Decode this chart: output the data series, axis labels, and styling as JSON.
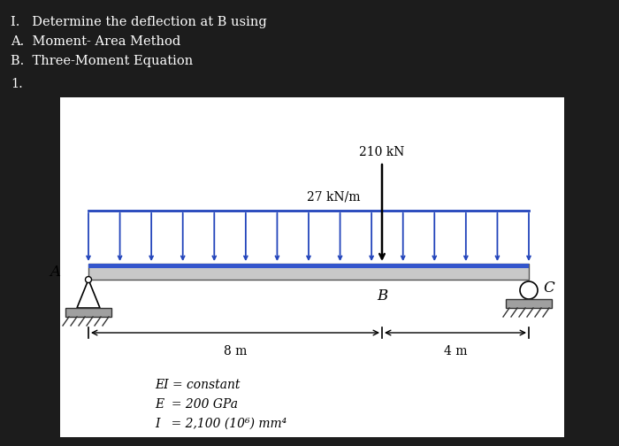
{
  "bg_color": "#1c1c1c",
  "white_box_color": "#ffffff",
  "title_lines": [
    "I.   Determine the deflection at B using",
    "A.  Moment- Area Method",
    "B.  Three-Moment Equation"
  ],
  "label_1": "1.",
  "load_arrow_color": "#2244bb",
  "point_load_color": "#000000",
  "label_A": "A",
  "label_B": "B",
  "label_C": "C",
  "dist_load_label": "27 kN/m",
  "point_load_label": "210 kN",
  "dim_label_8m": "8 m",
  "dim_label_4m": "4 m",
  "ei_line1": "EI = constant",
  "ei_line2": "E  = 200 GPa",
  "ei_line3": "I   = 2,100 (10⁶) mm⁴",
  "text_color": "#ffffff",
  "diagram_text_color": "#000000",
  "bL": 0.09,
  "bR": 0.89,
  "bY": 0.6,
  "bH": 0.04,
  "n_arrows": 15
}
